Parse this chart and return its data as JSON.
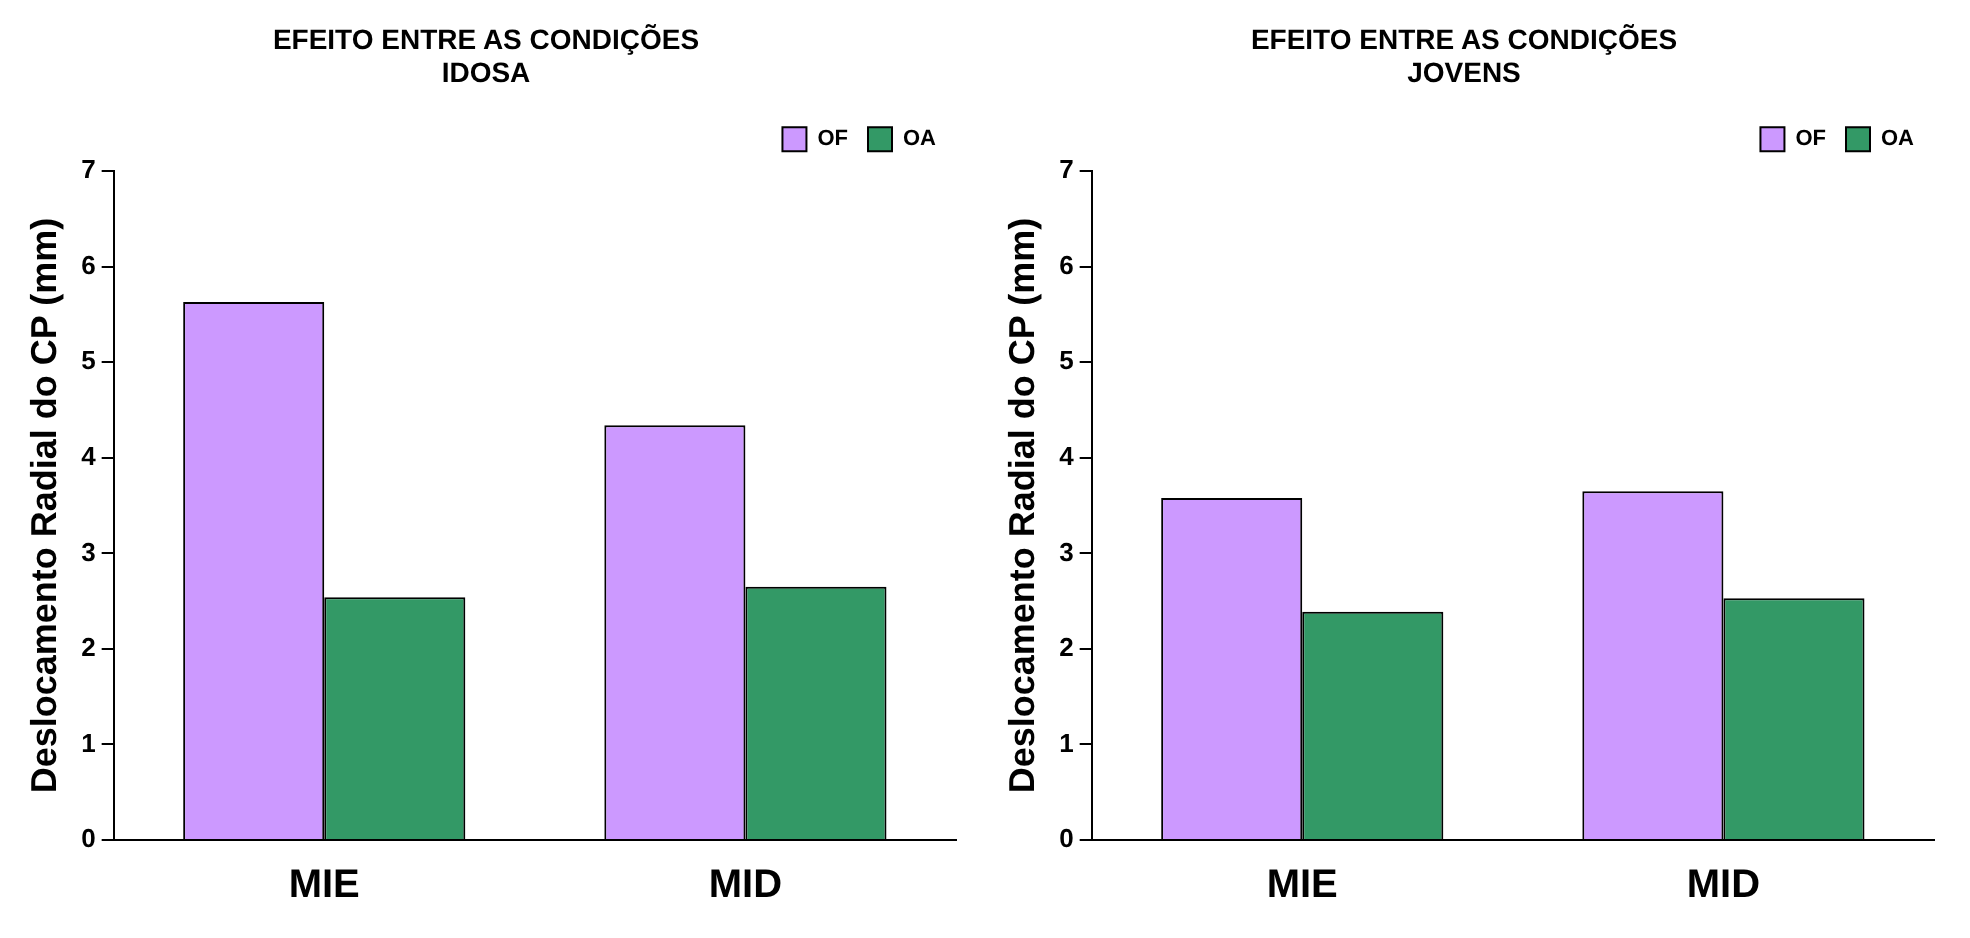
{
  "chart_data": [
    {
      "type": "bar",
      "title": "EFEITO ENTRE AS CONDIÇÕES\nIDOSA",
      "ylabel": "Deslocamento Radial do CP (mm)",
      "categories": [
        "MIE",
        "MID"
      ],
      "series": [
        {
          "name": "OF",
          "color": "#cc99ff",
          "values": [
            5.63,
            4.34
          ]
        },
        {
          "name": "OA",
          "color": "#339966",
          "values": [
            2.54,
            2.65
          ]
        }
      ],
      "ylim": [
        0,
        7
      ],
      "yticks": [
        0,
        1,
        2,
        3,
        4,
        5,
        6,
        7
      ],
      "legend": "top right"
    },
    {
      "type": "bar",
      "title": "EFEITO ENTRE AS CONDIÇÕES\nJOVENS",
      "ylabel": "Deslocamento Radial do CP (mm)",
      "categories": [
        "MIE",
        "MID"
      ],
      "series": [
        {
          "name": "OF",
          "color": "#cc99ff",
          "values": [
            3.58,
            3.65
          ]
        },
        {
          "name": "OA",
          "color": "#339966",
          "values": [
            2.39,
            2.53
          ]
        }
      ],
      "ylim": [
        0,
        7
      ],
      "yticks": [
        0,
        1,
        2,
        3,
        4,
        5,
        6,
        7
      ],
      "legend": "top right"
    }
  ]
}
